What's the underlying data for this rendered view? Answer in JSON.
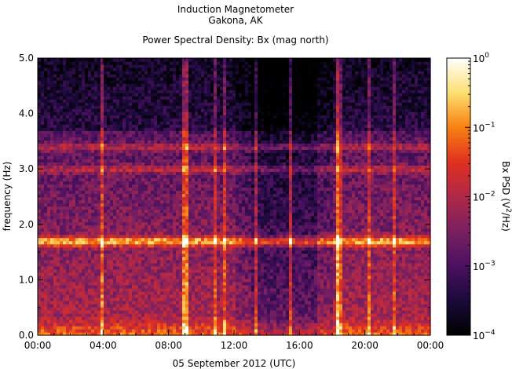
{
  "header": {
    "instrument": "Induction Magnetometer",
    "location": "Gakona, AK",
    "plot_title": "Power Spectral Density: Bx (mag north)"
  },
  "colorbar": {
    "label_prefix": "Bx PSD (V",
    "label_exp": "2",
    "label_suffix": "/Hz)",
    "ticks": [
      {
        "base": "10",
        "exp": "0",
        "value": 1
      },
      {
        "base": "10",
        "exp": "−1",
        "value": 0.1
      },
      {
        "base": "10",
        "exp": "−2",
        "value": 0.01
      },
      {
        "base": "10",
        "exp": "−3",
        "value": 0.001
      },
      {
        "base": "10",
        "exp": "−4",
        "value": 0.0001
      }
    ],
    "colors": [
      "#000000",
      "#1a0a3a",
      "#4a1060",
      "#7a2060",
      "#b02848",
      "#e03020",
      "#f88010",
      "#fce070",
      "#ffffff"
    ]
  },
  "chart_data": {
    "type": "heatmap",
    "title": "Power Spectral Density: Bx (mag north)",
    "xlabel": "05 September 2012 (UTC)",
    "ylabel": "frequency (Hz)",
    "x_ticks": [
      "00:00",
      "04:00",
      "08:00",
      "12:00",
      "16:00",
      "20:00",
      "00:00"
    ],
    "y_ticks": [
      "0.0",
      "1.0",
      "2.0",
      "3.0",
      "4.0",
      "5.0"
    ],
    "xlim_hours": [
      0,
      24
    ],
    "ylim": [
      0,
      5.0
    ],
    "zscale": "log",
    "zlim": [
      0.0001,
      1
    ],
    "spectral_bands_hz": [
      {
        "freq": 1.7,
        "level": "high"
      },
      {
        "freq": 3.0,
        "level": "medium"
      },
      {
        "freq": 3.4,
        "level": "medium"
      }
    ],
    "quiet_interval_hours": [
      13,
      17
    ]
  }
}
